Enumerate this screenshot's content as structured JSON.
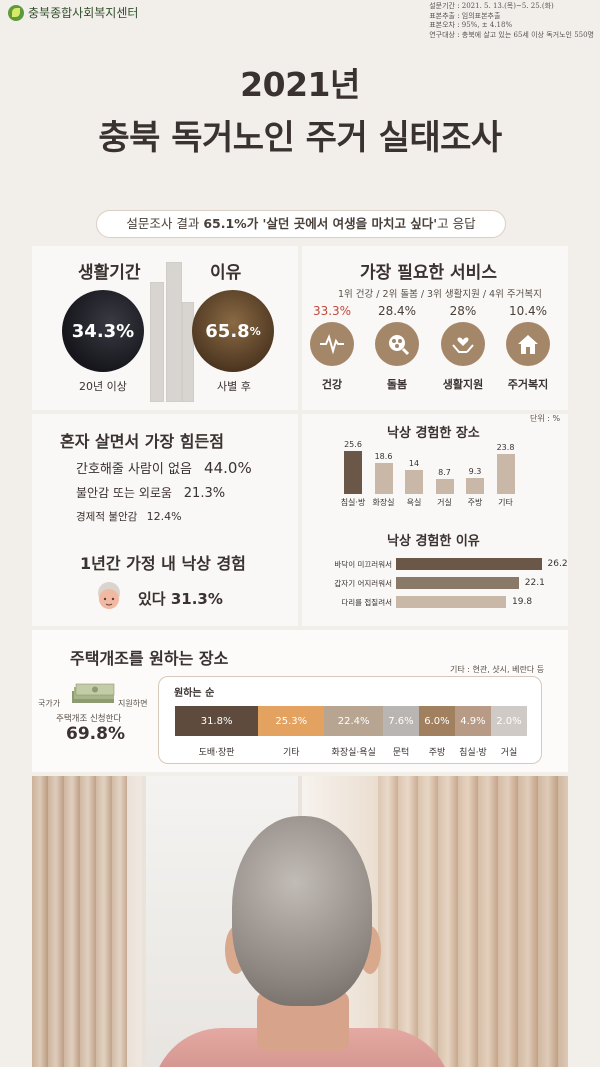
{
  "header": {
    "org_name": "충북종합사회복지센터",
    "meta": [
      "설문기간 : 2021. 5. 13.(목)~5. 25.(화)",
      "표본추출 : 임의표본추출",
      "표본오차 : 95%, ± 4.18%",
      "연구대상 : 충북에 살고 있는 65세 이상 독거노인 550명"
    ],
    "title_line1": "2021년",
    "title_line2": "충북 독거노인 주거 실태조사"
  },
  "summary": {
    "prefix": "설문조사 결과 ",
    "highlight": "65.1%가 '살던 곳에서 여생을 마치고 싶다'",
    "suffix": "고 응답"
  },
  "living": {
    "heading_period": "생활기간",
    "heading_reason": "이유",
    "period_value": "34.3%",
    "period_caption": "20년 이상",
    "reason_value": "65.8",
    "reason_unit": "%",
    "reason_caption": "사별 후"
  },
  "services": {
    "heading": "가장 필요한 서비스",
    "ranking": "1위 건강 / 2위 돌봄 / 3위 생활지원 / 4위 주거복지",
    "items": [
      {
        "value": "33.3%",
        "label": "건강",
        "icon": "heartbeat-icon"
      },
      {
        "value": "28.4%",
        "label": "돌봄",
        "icon": "caregiver-group-icon"
      },
      {
        "value": "28%",
        "label": "생활지원",
        "icon": "helping-hands-icon"
      },
      {
        "value": "10.4%",
        "label": "주거복지",
        "icon": "house-icon"
      }
    ]
  },
  "difficulties": {
    "heading": "혼자 살면서 가장 힘든점",
    "items": [
      {
        "label": "간호해줄 사람이 없음",
        "value": "44.0%"
      },
      {
        "label": "불안감 또는 외로움",
        "value": "21.3%"
      },
      {
        "label": "경제적 불안감",
        "value": "12.4%"
      }
    ]
  },
  "fall_experience": {
    "heading": "1년간 가정 내 낙상 경험",
    "value_text": "있다 31.3%"
  },
  "fall_places": {
    "unit": "단위 : %",
    "heading": "낙상 경험한 장소",
    "chart_data": {
      "type": "bar",
      "categories": [
        "침실·방",
        "화장실",
        "욕실",
        "거실",
        "주방",
        "기타"
      ],
      "values": [
        25.6,
        18.6,
        14,
        8.7,
        9.3,
        23.8
      ],
      "ylim": [
        0,
        26
      ]
    }
  },
  "fall_reasons": {
    "heading": "낙상 경험한 이유",
    "chart_data": {
      "type": "bar",
      "categories": [
        "바닥이 미끄러워서",
        "갑자기 어지러워서",
        "다리를 접질려서"
      ],
      "values": [
        26.2,
        22.1,
        19.8
      ],
      "xlim": [
        0,
        27
      ]
    }
  },
  "renovation": {
    "heading": "주택개조를 원하는 장소",
    "note": "기타 : 현관, 샷시, 베란다 등",
    "apply_line1_left": "국가가",
    "apply_line1_right": "지원하면",
    "apply_line2": "주택개조 신청한다",
    "apply_value": "69.8%",
    "order_label": "원하는 순",
    "chart_data": {
      "type": "bar",
      "categories": [
        "도배·장판",
        "기타",
        "화장실·욕실",
        "문턱",
        "주방",
        "침실·방",
        "거실"
      ],
      "values": [
        31.8,
        25.3,
        22.4,
        7.6,
        6.0,
        4.9,
        2.0
      ],
      "labels": [
        "31.8%",
        "25.3%",
        "22.4%",
        "7.6%",
        "6.0%",
        "4.9%",
        "2.0%"
      ]
    }
  },
  "colors": {
    "accent_brown": "#a48669",
    "dark_bar": "#6b5748",
    "light_bar": "#c9b8a7",
    "orange": "#e3a25f",
    "red_text": "#c1493e"
  }
}
